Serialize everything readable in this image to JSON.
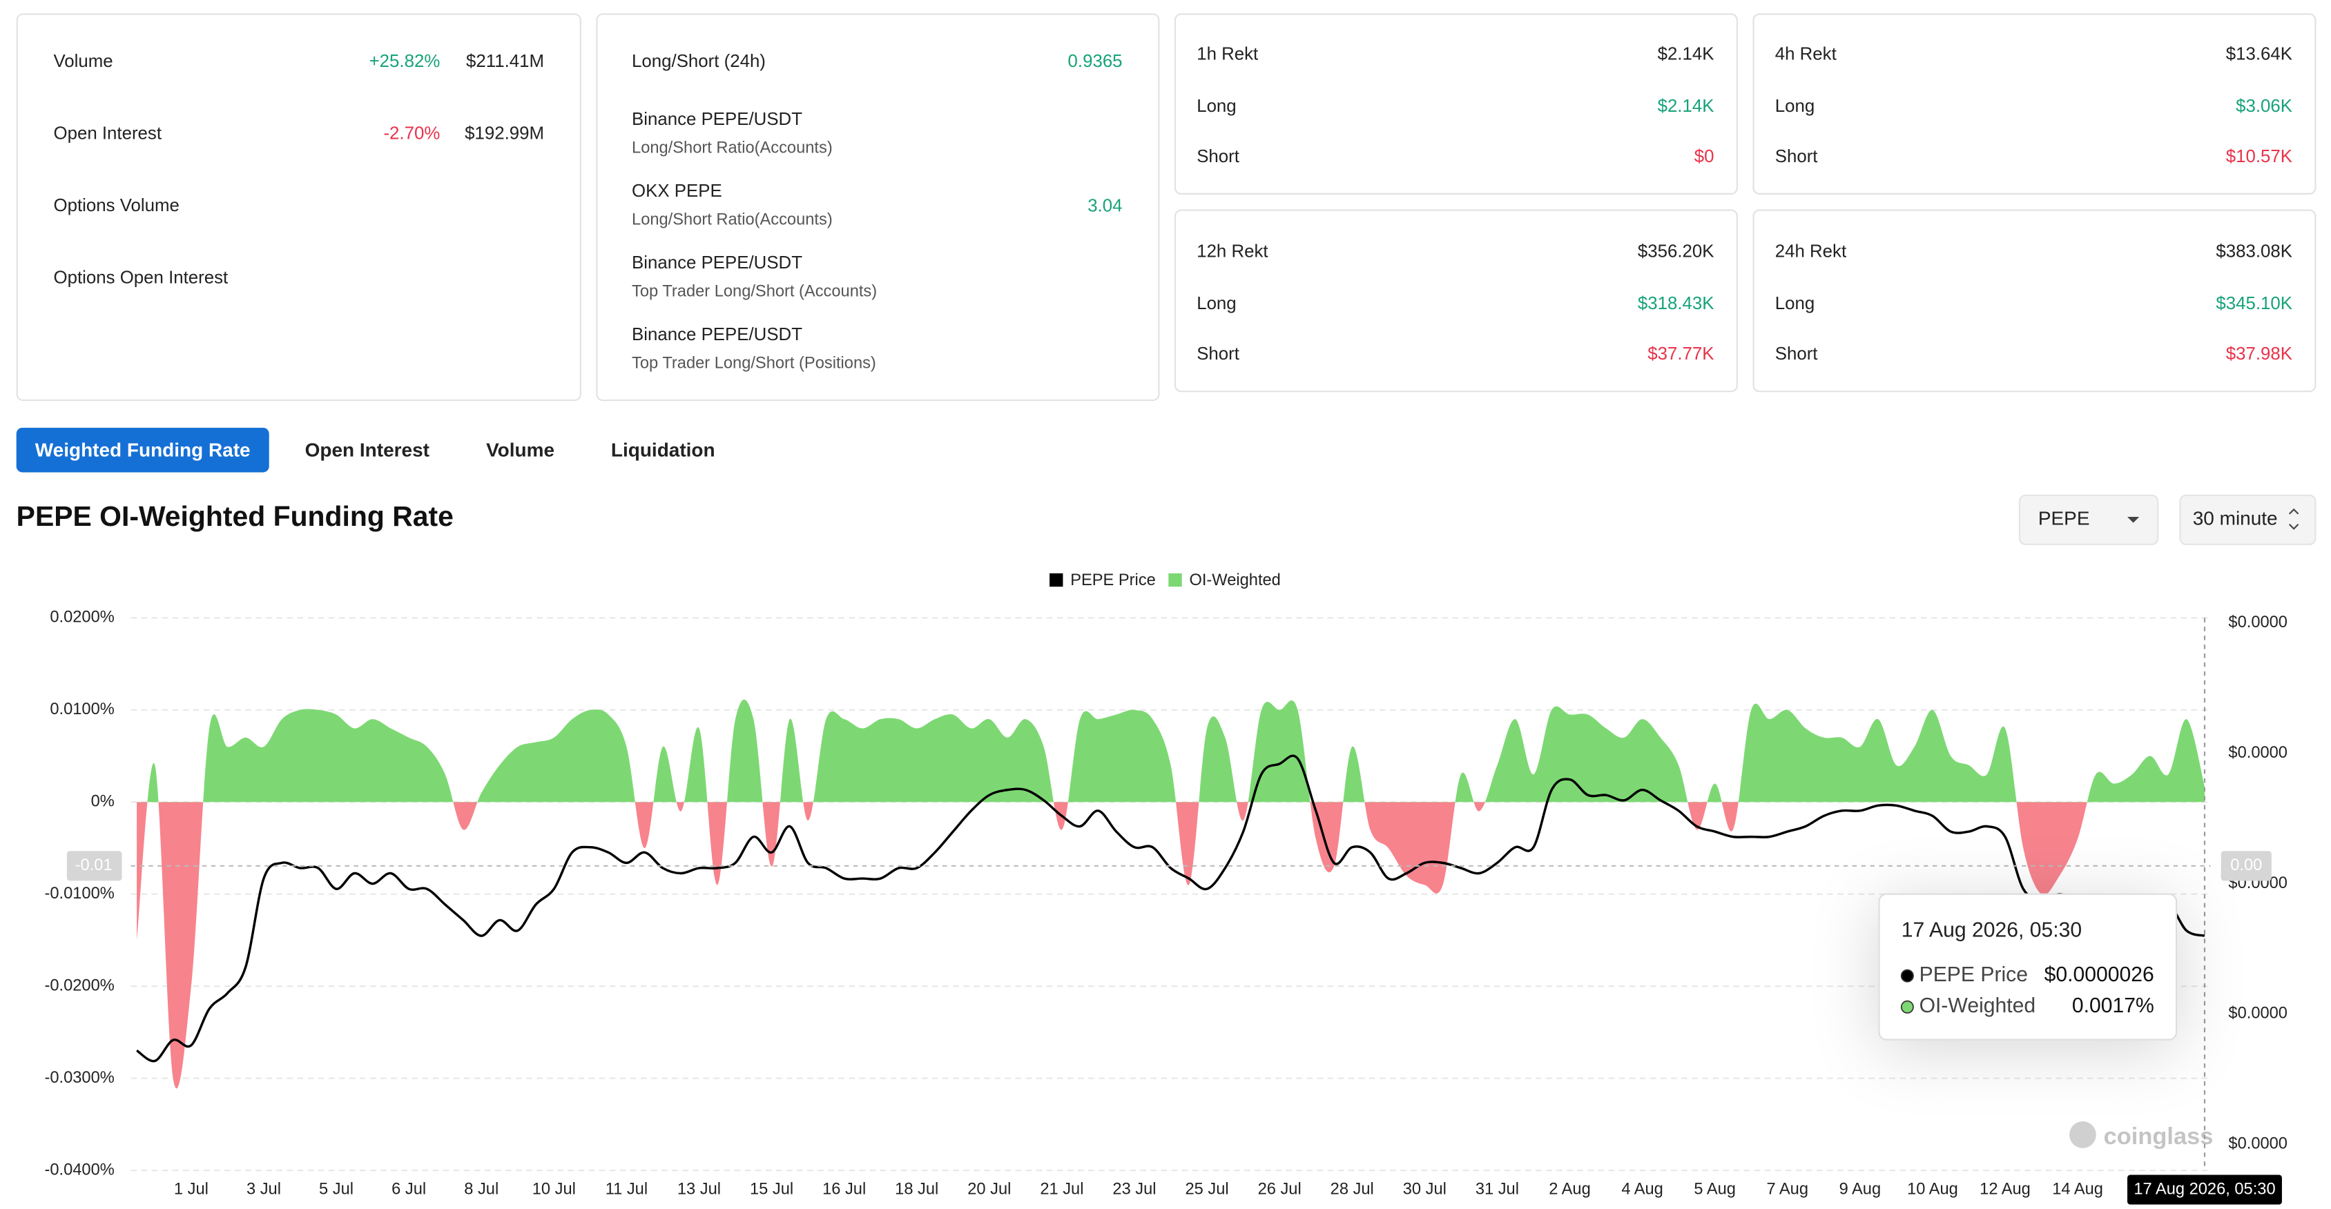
{
  "stats": {
    "rows": [
      {
        "label": "Volume",
        "change": "+25.82%",
        "value": "$211.41M"
      },
      {
        "label": "Open Interest",
        "change": "-2.70%",
        "value": "$192.99M"
      },
      {
        "label": "Options Volume"
      },
      {
        "label": "Options Open Interest"
      }
    ]
  },
  "long_short": {
    "title": "Long/Short (24h)",
    "value": "0.9365",
    "items": [
      {
        "exchange": "Binance PEPE/USDT",
        "metric": "Long/Short Ratio(Accounts)"
      },
      {
        "exchange": "OKX PEPE",
        "metric": "Long/Short Ratio(Accounts)",
        "value": "3.04"
      },
      {
        "exchange": "Binance PEPE/USDT",
        "metric": "Top Trader Long/Short (Accounts)"
      },
      {
        "exchange": "Binance PEPE/USDT",
        "metric": "Top Trader Long/Short (Positions)"
      }
    ]
  },
  "rekt": [
    {
      "title": "1h Rekt",
      "total": "$2.14K",
      "rows": [
        {
          "label": "Long",
          "value": "$2.14K"
        },
        {
          "label": "Short",
          "value": "$0"
        }
      ]
    },
    {
      "title": "4h Rekt",
      "total": "$13.64K",
      "rows": [
        {
          "label": "Long",
          "value": "$3.06K"
        },
        {
          "label": "Short",
          "value": "$10.57K"
        }
      ]
    },
    {
      "title": "12h Rekt",
      "total": "$356.20K",
      "rows": [
        {
          "label": "Long",
          "value": "$318.43K"
        },
        {
          "label": "Short",
          "value": "$37.77K"
        }
      ]
    },
    {
      "title": "24h Rekt",
      "total": "$383.08K",
      "rows": [
        {
          "label": "Long",
          "value": "$345.10K"
        },
        {
          "label": "Short",
          "value": "$37.98K"
        }
      ]
    }
  ],
  "tabs": [
    "Weighted Funding Rate",
    "Open Interest",
    "Volume",
    "Liquidation"
  ],
  "active_tab": 0,
  "chart_header": {
    "title": "PEPE OI-Weighted Funding Rate",
    "symbol": "PEPE",
    "interval": "30 minute"
  },
  "watermark": "coinglass",
  "chart_data": {
    "type": "line",
    "categories": [
      null,
      null,
      null,
      "1 Jul",
      null,
      null,
      null,
      "3 Jul",
      null,
      null,
      null,
      "5 Jul",
      null,
      null,
      null,
      "6 Jul",
      null,
      null,
      null,
      "8 Jul",
      null,
      null,
      null,
      "10 Jul",
      null,
      null,
      null,
      "11 Jul",
      null,
      null,
      null,
      "13 Jul",
      null,
      null,
      null,
      "15 Jul",
      null,
      null,
      null,
      "16 Jul",
      null,
      null,
      null,
      "18 Jul",
      null,
      null,
      null,
      "20 Jul",
      null,
      null,
      null,
      "21 Jul",
      null,
      null,
      null,
      "23 Jul",
      null,
      null,
      null,
      "25 Jul",
      null,
      null,
      null,
      "26 Jul",
      null,
      null,
      null,
      "28 Jul",
      null,
      null,
      null,
      "30 Jul",
      null,
      null,
      null,
      "31 Jul",
      null,
      null,
      null,
      "2 Aug",
      null,
      null,
      null,
      "4 Aug",
      null,
      null,
      null,
      "5 Aug",
      null,
      null,
      null,
      "7 Aug",
      null,
      null,
      null,
      "9 Aug",
      null,
      null,
      null,
      "10 Aug",
      null,
      null,
      null,
      "12 Aug",
      null,
      null,
      null,
      "14 Aug",
      null,
      null,
      null,
      null,
      null,
      null,
      "17 Aug 2026, 05:30"
    ],
    "series": [
      {
        "name": "PEPE Price",
        "color": "#000000",
        "type": "line",
        "axis": "y2",
        "values": [
          2.38e-06,
          2.36e-06,
          2.4e-06,
          2.39e-06,
          2.46e-06,
          2.49e-06,
          2.54e-06,
          2.71e-06,
          2.74e-06,
          2.73e-06,
          2.73e-06,
          2.69e-06,
          2.72e-06,
          2.7e-06,
          2.72e-06,
          2.69e-06,
          2.69e-06,
          2.66e-06,
          2.63e-06,
          2.6e-06,
          2.63e-06,
          2.61e-06,
          2.66e-06,
          2.69e-06,
          2.76e-06,
          2.77e-06,
          2.76e-06,
          2.74e-06,
          2.76e-06,
          2.73e-06,
          2.72e-06,
          2.73e-06,
          2.73e-06,
          2.74e-06,
          2.79e-06,
          2.76e-06,
          2.81e-06,
          2.74e-06,
          2.73e-06,
          2.71e-06,
          2.71e-06,
          2.71e-06,
          2.73e-06,
          2.73e-06,
          2.76e-06,
          2.8e-06,
          2.84e-06,
          2.87e-06,
          2.88e-06,
          2.88e-06,
          2.86e-06,
          2.83e-06,
          2.81e-06,
          2.84e-06,
          2.8e-06,
          2.77e-06,
          2.77e-06,
          2.73e-06,
          2.71e-06,
          2.69e-06,
          2.73e-06,
          2.8e-06,
          2.91e-06,
          2.93e-06,
          2.94e-06,
          2.84e-06,
          2.74e-06,
          2.77e-06,
          2.76e-06,
          2.71e-06,
          2.72e-06,
          2.74e-06,
          2.74e-06,
          2.73e-06,
          2.72e-06,
          2.74e-06,
          2.77e-06,
          2.77e-06,
          2.88e-06,
          2.9e-06,
          2.87e-06,
          2.87e-06,
          2.86e-06,
          2.88e-06,
          2.86e-06,
          2.84e-06,
          2.81e-06,
          2.8e-06,
          2.79e-06,
          2.79e-06,
          2.79e-06,
          2.8e-06,
          2.81e-06,
          2.83e-06,
          2.84e-06,
          2.84e-06,
          2.85e-06,
          2.85e-06,
          2.84e-06,
          2.83e-06,
          2.8e-06,
          2.8e-06,
          2.81e-06,
          2.79e-06,
          2.69e-06,
          2.67e-06,
          2.68e-06,
          2.67e-06,
          2.67e-06,
          2.66e-06,
          2.64e-06,
          2.63e-06,
          2.66e-06,
          2.61e-06,
          2.6e-06
        ]
      },
      {
        "name": "OI-Weighted",
        "color": "#7dd873",
        "negative_color": "#f7838d",
        "type": "area",
        "values": [
          -0.015,
          0.004,
          -0.03,
          -0.02,
          0.008,
          0.006,
          0.007,
          0.006,
          0.009,
          0.01,
          0.01,
          0.0095,
          0.008,
          0.009,
          0.008,
          0.007,
          0.006,
          0.003,
          -0.003,
          0.001,
          0.004,
          0.006,
          0.0065,
          0.007,
          0.009,
          0.01,
          0.0095,
          0.006,
          -0.005,
          0.006,
          -0.001,
          0.008,
          -0.009,
          0.009,
          0.009,
          -0.007,
          0.009,
          -0.002,
          0.009,
          0.009,
          0.008,
          0.009,
          0.009,
          0.008,
          0.009,
          0.0095,
          0.008,
          0.009,
          0.007,
          0.009,
          0.006,
          -0.003,
          0.009,
          0.009,
          0.0095,
          0.01,
          0.009,
          0.004,
          -0.009,
          0.008,
          0.007,
          -0.002,
          0.01,
          0.01,
          0.01,
          -0.004,
          -0.007,
          0.006,
          -0.003,
          -0.005,
          -0.008,
          -0.009,
          -0.009,
          0.003,
          -0.001,
          0.004,
          0.009,
          0.003,
          0.01,
          0.0095,
          0.0095,
          0.008,
          0.007,
          0.009,
          0.007,
          0.004,
          -0.003,
          0.002,
          -0.003,
          0.01,
          0.009,
          0.01,
          0.008,
          0.007,
          0.007,
          0.006,
          0.009,
          0.004,
          0.006,
          0.01,
          0.005,
          0.004,
          0.003,
          0.008,
          -0.005,
          -0.01,
          -0.008,
          -0.004,
          0.003,
          0.002,
          0.003,
          0.005,
          0.003,
          0.009,
          0.0017
        ]
      }
    ],
    "tooltip_value_labels": [
      "$0.0000026",
      "0.0017%"
    ],
    "crosshair": {
      "y_label": "-0.01",
      "y2_label": "0.00"
    },
    "ylim": [
      -0.04,
      0.02
    ],
    "yticks": [
      {
        "value": 0.02,
        "label": "0.0200%"
      },
      {
        "value": 0.01,
        "label": "0.0100%"
      },
      {
        "value": 0,
        "label": "0%"
      },
      {
        "value": -0.01,
        "label": "-0.0100%"
      },
      {
        "value": -0.02,
        "label": "-0.0200%"
      },
      {
        "value": -0.03,
        "label": "-0.0300%"
      },
      {
        "value": -0.04,
        "label": "-0.0400%"
      }
    ],
    "y2lim": [
      2.15e-06,
      3.21e-06
    ],
    "y2ticks": [
      {
        "value": 3.2e-06,
        "label": "$0.0000"
      },
      {
        "value": 2.95e-06,
        "label": "$0.0000"
      },
      {
        "value": 2.7e-06,
        "label": "$0.0000"
      },
      {
        "value": 2.45e-06,
        "label": "$0.0000"
      },
      {
        "value": 2.2e-06,
        "label": "$0.0000"
      }
    ],
    "grid": true,
    "legend": "top"
  }
}
